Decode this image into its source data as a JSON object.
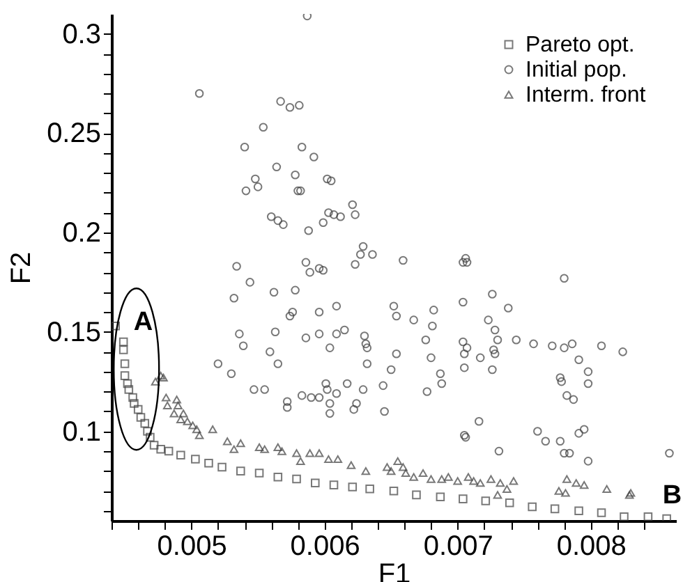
{
  "chart_data": {
    "type": "scatter",
    "xlabel": "F1",
    "ylabel": "F2",
    "xlim": [
      0.0044,
      0.00864
    ],
    "ylim": [
      0.055,
      0.31
    ],
    "xticks": [
      {
        "value": 0.0044,
        "label": null
      },
      {
        "value": 0.0046,
        "label": null
      },
      {
        "value": 0.0048,
        "label": null
      },
      0.005,
      {
        "value": 0.0052,
        "label": null
      },
      {
        "value": 0.0054,
        "label": null
      },
      {
        "value": 0.0056,
        "label": null
      },
      {
        "value": 0.0058,
        "label": null
      },
      0.006,
      {
        "value": 0.0062,
        "label": null
      },
      {
        "value": 0.0064,
        "label": null
      },
      {
        "value": 0.0066,
        "label": null
      },
      {
        "value": 0.0068,
        "label": null
      },
      0.007,
      {
        "value": 0.0072,
        "label": null
      },
      {
        "value": 0.0074,
        "label": null
      },
      {
        "value": 0.0076,
        "label": null
      },
      {
        "value": 0.0078,
        "label": null
      },
      0.008,
      {
        "value": 0.0082,
        "label": null
      },
      {
        "value": 0.0084,
        "label": null
      }
    ],
    "yticks": [
      {
        "value": 0.06,
        "label": null
      },
      {
        "value": 0.07,
        "label": null
      },
      {
        "value": 0.08,
        "label": null
      },
      {
        "value": 0.09,
        "label": null
      },
      0.1,
      {
        "value": 0.11,
        "label": null
      },
      {
        "value": 0.12,
        "label": null
      },
      {
        "value": 0.13,
        "label": null
      },
      {
        "value": 0.14,
        "label": null
      },
      0.15,
      {
        "value": 0.16,
        "label": null
      },
      {
        "value": 0.17,
        "label": null
      },
      {
        "value": 0.18,
        "label": null
      },
      {
        "value": 0.19,
        "label": null
      },
      0.2,
      {
        "value": 0.21,
        "label": null
      },
      {
        "value": 0.22,
        "label": null
      },
      {
        "value": 0.23,
        "label": null
      },
      {
        "value": 0.24,
        "label": null
      },
      0.25,
      {
        "value": 0.26,
        "label": null
      },
      {
        "value": 0.27,
        "label": null
      },
      {
        "value": 0.28,
        "label": null
      },
      {
        "value": 0.29,
        "label": null
      },
      0.3
    ],
    "grid": false,
    "legend": "top right",
    "annotations": [
      "A",
      "B"
    ],
    "series": [
      {
        "name": "Pareto opt.",
        "color": "#404040",
        "marker": "square",
        "x": [
          0.00443,
          0.00449,
          0.00449,
          0.0045,
          0.0045,
          0.00452,
          0.00453,
          0.00456,
          0.00457,
          0.0046,
          0.00462,
          0.00465,
          0.00467,
          0.00469,
          0.00472,
          0.00477,
          0.00483,
          0.00492,
          0.00503,
          0.00513,
          0.00523,
          0.00537,
          0.00551,
          0.00565,
          0.00579,
          0.00593,
          0.00607,
          0.00621,
          0.00634,
          0.00652,
          0.00669,
          0.00687,
          0.00704,
          0.00721,
          0.00739,
          0.00756,
          0.00773,
          0.00791,
          0.00808,
          0.00825,
          0.00843,
          0.00857
        ],
        "values": [
          0.153,
          0.145,
          0.141,
          0.134,
          0.128,
          0.124,
          0.121,
          0.117,
          0.114,
          0.111,
          0.107,
          0.104,
          0.1,
          0.097,
          0.093,
          0.091,
          0.09,
          0.088,
          0.086,
          0.084,
          0.082,
          0.08,
          0.079,
          0.077,
          0.076,
          0.074,
          0.073,
          0.072,
          0.071,
          0.07,
          0.068,
          0.067,
          0.066,
          0.065,
          0.064,
          0.062,
          0.061,
          0.06,
          0.059,
          0.057,
          0.057,
          0.056
        ]
      },
      {
        "name": "Initial pop.",
        "color": "#404040",
        "marker": "circle",
        "x": [
          0.00587,
          0.00506,
          0.00567,
          0.00574,
          0.00581,
          0.00554,
          0.0054,
          0.00583,
          0.00592,
          0.00548,
          0.00541,
          0.0055,
          0.00564,
          0.00578,
          0.0058,
          0.00582,
          0.00602,
          0.00605,
          0.0056,
          0.00565,
          0.00569,
          0.00588,
          0.00599,
          0.00603,
          0.00607,
          0.00612,
          0.00621,
          0.00623,
          0.00629,
          0.00627,
          0.00623,
          0.00636,
          0.00586,
          0.00596,
          0.00599,
          0.00589,
          0.00534,
          0.00544,
          0.00532,
          0.00562,
          0.00578,
          0.00576,
          0.00574,
          0.00596,
          0.00609,
          0.00563,
          0.00536,
          0.00539,
          0.00559,
          0.00565,
          0.00586,
          0.00596,
          0.00604,
          0.00609,
          0.00615,
          0.0063,
          0.00631,
          0.00632,
          0.00632,
          0.0053,
          0.0052,
          0.00547,
          0.00555,
          0.00572,
          0.00572,
          0.00583,
          0.0059,
          0.00596,
          0.00602,
          0.00601,
          0.00604,
          0.00604,
          0.00609,
          0.00617,
          0.00624,
          0.00629,
          0.00622,
          0.00644,
          0.00645,
          0.0065,
          0.00654,
          0.00652,
          0.00654,
          0.00659,
          0.00667,
          0.00681,
          0.00682,
          0.00676,
          0.0068,
          0.00677,
          0.00687,
          0.00688,
          0.00704,
          0.00706,
          0.00707,
          0.00704,
          0.00704,
          0.00705,
          0.00707,
          0.00705,
          0.00717,
          0.00716,
          0.00705,
          0.00706,
          0.00723,
          0.00726,
          0.00728,
          0.00727,
          0.00726,
          0.00728,
          0.0073,
          0.00738,
          0.00744,
          0.00731,
          0.00757,
          0.0076,
          0.00766,
          0.00771,
          0.00777,
          0.0078,
          0.00784,
          0.0078,
          0.0078,
          0.00786,
          0.00777,
          0.00778,
          0.00782,
          0.00787,
          0.00791,
          0.00795,
          0.00791,
          0.00798,
          0.00798,
          0.00798,
          0.00808,
          0.00824,
          0.00859
        ],
        "values": [
          0.309,
          0.27,
          0.266,
          0.263,
          0.264,
          0.253,
          0.243,
          0.243,
          0.238,
          0.227,
          0.221,
          0.223,
          0.233,
          0.229,
          0.221,
          0.221,
          0.227,
          0.226,
          0.208,
          0.206,
          0.204,
          0.201,
          0.205,
          0.21,
          0.209,
          0.208,
          0.214,
          0.209,
          0.193,
          0.189,
          0.184,
          0.189,
          0.185,
          0.182,
          0.181,
          0.18,
          0.183,
          0.175,
          0.167,
          0.17,
          0.171,
          0.16,
          0.158,
          0.16,
          0.163,
          0.15,
          0.149,
          0.143,
          0.14,
          0.134,
          0.147,
          0.149,
          0.142,
          0.149,
          0.151,
          0.148,
          0.144,
          0.142,
          0.134,
          0.129,
          0.134,
          0.121,
          0.121,
          0.115,
          0.112,
          0.118,
          0.117,
          0.117,
          0.121,
          0.124,
          0.114,
          0.109,
          0.119,
          0.124,
          0.114,
          0.121,
          0.111,
          0.123,
          0.11,
          0.131,
          0.139,
          0.163,
          0.158,
          0.186,
          0.156,
          0.153,
          0.161,
          0.146,
          0.137,
          0.12,
          0.129,
          0.124,
          0.185,
          0.187,
          0.185,
          0.165,
          0.145,
          0.139,
          0.142,
          0.132,
          0.137,
          0.105,
          0.098,
          0.097,
          0.156,
          0.169,
          0.151,
          0.141,
          0.131,
          0.139,
          0.146,
          0.162,
          0.146,
          0.09,
          0.144,
          0.1,
          0.095,
          0.143,
          0.095,
          0.089,
          0.089,
          0.177,
          0.142,
          0.144,
          0.127,
          0.125,
          0.118,
          0.116,
          0.136,
          0.101,
          0.099,
          0.13,
          0.124,
          0.085,
          0.143,
          0.14,
          0.089
        ]
      },
      {
        "name": "Interm. front",
        "color": "#404040",
        "marker": "triangle",
        "x": [
          0.00477,
          0.00479,
          0.00473,
          0.00481,
          0.00489,
          0.00482,
          0.0049,
          0.00487,
          0.00494,
          0.00492,
          0.00497,
          0.00501,
          0.00504,
          0.00506,
          0.00516,
          0.00527,
          0.00532,
          0.00537,
          0.00551,
          0.00555,
          0.00565,
          0.00568,
          0.00579,
          0.00582,
          0.00589,
          0.00596,
          0.00603,
          0.0061,
          0.0062,
          0.00631,
          0.00647,
          0.0065,
          0.00655,
          0.00659,
          0.00661,
          0.00667,
          0.00674,
          0.0068,
          0.00688,
          0.00693,
          0.007,
          0.00708,
          0.00712,
          0.00717,
          0.00725,
          0.00732,
          0.00737,
          0.00742,
          0.0073,
          0.00782,
          0.00789,
          0.00795,
          0.00776,
          0.00781,
          0.00812,
          0.00829,
          0.0083
        ],
        "values": [
          0.128,
          0.127,
          0.125,
          0.117,
          0.116,
          0.113,
          0.113,
          0.109,
          0.109,
          0.106,
          0.105,
          0.103,
          0.101,
          0.098,
          0.101,
          0.095,
          0.091,
          0.094,
          0.092,
          0.091,
          0.092,
          0.09,
          0.089,
          0.085,
          0.089,
          0.089,
          0.086,
          0.086,
          0.083,
          0.08,
          0.082,
          0.08,
          0.085,
          0.082,
          0.079,
          0.077,
          0.079,
          0.076,
          0.076,
          0.077,
          0.075,
          0.077,
          0.075,
          0.074,
          0.076,
          0.074,
          0.071,
          0.075,
          0.068,
          0.076,
          0.074,
          0.073,
          0.07,
          0.069,
          0.071,
          0.068,
          0.069
        ]
      }
    ]
  }
}
